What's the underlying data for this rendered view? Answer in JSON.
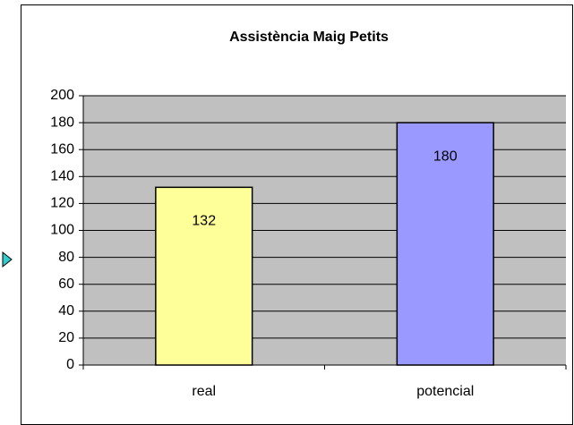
{
  "chart_data": {
    "type": "bar",
    "title": "Assistència Maig Petits",
    "categories": [
      "real",
      "potencial"
    ],
    "values": [
      132,
      180
    ],
    "colors": [
      "#ffff99",
      "#9999ff"
    ],
    "ylim": [
      0,
      200
    ],
    "yticks": [
      0,
      20,
      40,
      60,
      80,
      100,
      120,
      140,
      160,
      180,
      200
    ],
    "grid": true
  }
}
